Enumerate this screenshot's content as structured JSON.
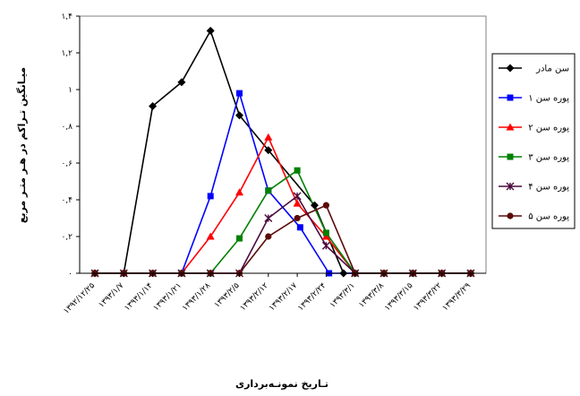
{
  "chart_data": {
    "type": "line",
    "title": "",
    "xlabel": "تـاریخ نمونـه‌برداری",
    "ylabel": "میـانگین تـراکم در هـر متـر مربع",
    "ylim": [
      0,
      1.4
    ],
    "yticks": [
      {
        "value": 0,
        "label": "۰"
      },
      {
        "value": 0.2,
        "label": "۰,۲"
      },
      {
        "value": 0.4,
        "label": "۰,۴"
      },
      {
        "value": 0.6,
        "label": "۰,۶"
      },
      {
        "value": 0.8,
        "label": "۰,۸"
      },
      {
        "value": 1.0,
        "label": "۱"
      },
      {
        "value": 1.2,
        "label": "۱,۲"
      },
      {
        "value": 1.4,
        "label": "۱,۴"
      }
    ],
    "grid": false,
    "legend_position": "right",
    "categories": [
      "۱۳۹۲/۱۲/۲۵",
      "۱۳۹۳/۱/۷",
      "۱۳۹۳/۱/۱۴",
      "۱۳۹۳/۱/۲۱",
      "۱۳۹۳/۱/۲۸",
      "۱۳۹۳/۲/۵",
      "۱۳۹۳/۲/۱۲",
      "۱۳۹۳/۲/۱۷",
      "۱۳۹۳/۲/۲۴",
      "۱۳۹۳/۳/۱",
      "۱۳۹۳/۳/۸",
      "۱۳۹۳/۳/۱۵",
      "۱۳۹۳/۳/۲۲",
      "۱۳۹۳/۳/۲۹"
    ],
    "x_positions": [
      0,
      1,
      2,
      3,
      4,
      5,
      6,
      7,
      8,
      9,
      10,
      11,
      12,
      13
    ],
    "series": [
      {
        "name": "سن مادر",
        "color": "#000000",
        "marker": "diamond",
        "points": [
          [
            0,
            0
          ],
          [
            1,
            0
          ],
          [
            2,
            0.91
          ],
          [
            3,
            1.04
          ],
          [
            4,
            1.32
          ],
          [
            5,
            0.86
          ],
          [
            6,
            0.67
          ],
          [
            7.6,
            0.37
          ],
          [
            8.6,
            0
          ],
          [
            9,
            0
          ],
          [
            10,
            0
          ],
          [
            11,
            0
          ],
          [
            12,
            0
          ],
          [
            13,
            0
          ]
        ]
      },
      {
        "name": "پوره سن ۱",
        "color": "#0000ff",
        "marker": "square",
        "points": [
          [
            0,
            0
          ],
          [
            1,
            0
          ],
          [
            2,
            0
          ],
          [
            3,
            0
          ],
          [
            4,
            0.42
          ],
          [
            5,
            0.98
          ],
          [
            6,
            0.45
          ],
          [
            7.1,
            0.25
          ],
          [
            8.1,
            0
          ],
          [
            9,
            0
          ],
          [
            10,
            0
          ],
          [
            11,
            0
          ],
          [
            12,
            0
          ],
          [
            13,
            0
          ]
        ]
      },
      {
        "name": "پوره سن ۲",
        "color": "#ff0000",
        "marker": "triangle",
        "points": [
          [
            0,
            0
          ],
          [
            1,
            0
          ],
          [
            2,
            0
          ],
          [
            3,
            0
          ],
          [
            4,
            0.2
          ],
          [
            5,
            0.44
          ],
          [
            6,
            0.74
          ],
          [
            7,
            0.38
          ],
          [
            8,
            0.2
          ],
          [
            9,
            0
          ],
          [
            10,
            0
          ],
          [
            11,
            0
          ],
          [
            12,
            0
          ],
          [
            13,
            0
          ]
        ]
      },
      {
        "name": "پوره سن ۳",
        "color": "#008000",
        "marker": "square",
        "points": [
          [
            0,
            0
          ],
          [
            1,
            0
          ],
          [
            2,
            0
          ],
          [
            3,
            0
          ],
          [
            4,
            0
          ],
          [
            5,
            0.19
          ],
          [
            6,
            0.45
          ],
          [
            7,
            0.56
          ],
          [
            8,
            0.22
          ],
          [
            9,
            0
          ],
          [
            10,
            0
          ],
          [
            11,
            0
          ],
          [
            12,
            0
          ],
          [
            13,
            0
          ]
        ]
      },
      {
        "name": "پوره سن ۴",
        "color": "#4b0a3c",
        "marker": "star",
        "points": [
          [
            0,
            0
          ],
          [
            1,
            0
          ],
          [
            2,
            0
          ],
          [
            3,
            0
          ],
          [
            4,
            0
          ],
          [
            5,
            0
          ],
          [
            6,
            0.3
          ],
          [
            7,
            0.42
          ],
          [
            8,
            0.15
          ],
          [
            9,
            0
          ],
          [
            10,
            0
          ],
          [
            11,
            0
          ],
          [
            12,
            0
          ],
          [
            13,
            0
          ]
        ]
      },
      {
        "name": "پوره سن ۵",
        "color": "#5a0a0a",
        "marker": "circle",
        "points": [
          [
            0,
            0
          ],
          [
            1,
            0
          ],
          [
            2,
            0
          ],
          [
            3,
            0
          ],
          [
            4,
            0
          ],
          [
            5,
            0
          ],
          [
            6,
            0.2
          ],
          [
            7,
            0.3
          ],
          [
            8,
            0.37
          ],
          [
            9,
            0
          ],
          [
            10,
            0
          ],
          [
            11,
            0
          ],
          [
            12,
            0
          ],
          [
            13,
            0
          ]
        ]
      }
    ]
  }
}
